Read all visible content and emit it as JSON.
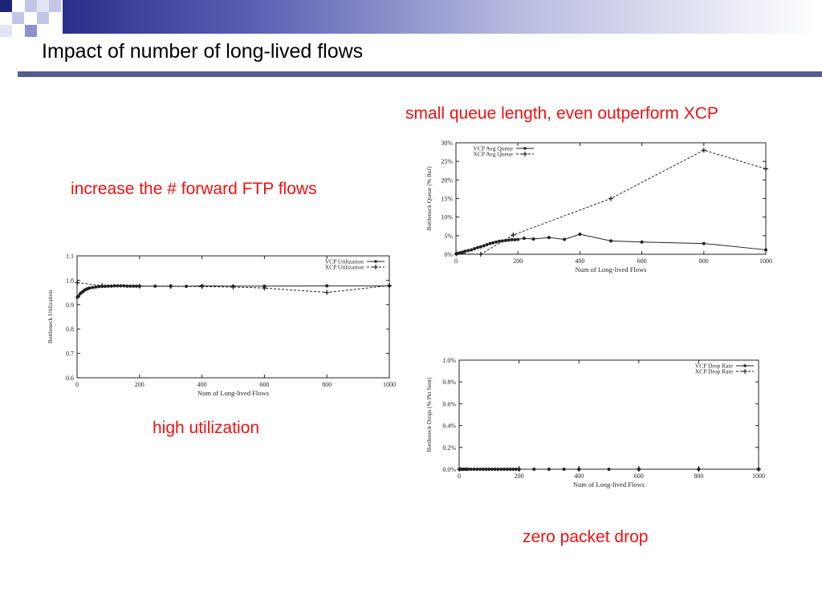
{
  "slide": {
    "title": "Impact of number of long-lived flows",
    "annotations": {
      "increase": "increase the # forward FTP flows",
      "queue": "small queue length, even outperform XCP",
      "utilization": "high utilization",
      "drop": "zero packet drop"
    },
    "colors": {
      "accent_dark": "#1f2378",
      "accent_mid": "#6a6fbd",
      "accent_light": "#c3c6e6",
      "annotation": "#ee1111"
    }
  },
  "chart_data": [
    {
      "id": "util",
      "type": "line",
      "xlabel": "Num of Long-lived Flows",
      "ylabel": "Bottleneck Utilization",
      "xlim": [
        0,
        1000
      ],
      "ylim": [
        0.6,
        1.1
      ],
      "xticks": [
        0,
        200,
        400,
        600,
        800,
        1000
      ],
      "yticks": [
        0.6,
        0.7,
        0.8,
        0.9,
        1.0,
        1.1
      ],
      "ytick_labels": [
        "0.6",
        "0.7",
        "0.8",
        "0.9",
        "1.0",
        "1.1"
      ],
      "legend_position": "top-right",
      "series": [
        {
          "name": "VCP Utilization",
          "style": "solid",
          "marker": "dot",
          "x": [
            1,
            5,
            10,
            15,
            20,
            25,
            30,
            35,
            40,
            50,
            60,
            70,
            80,
            90,
            100,
            110,
            120,
            130,
            140,
            150,
            160,
            170,
            180,
            190,
            200,
            250,
            300,
            350,
            400,
            500,
            600,
            800,
            1000
          ],
          "y": [
            0.93,
            0.935,
            0.945,
            0.95,
            0.955,
            0.96,
            0.963,
            0.966,
            0.968,
            0.97,
            0.972,
            0.974,
            0.975,
            0.975,
            0.976,
            0.976,
            0.977,
            0.977,
            0.977,
            0.977,
            0.976,
            0.976,
            0.976,
            0.976,
            0.976,
            0.976,
            0.976,
            0.975,
            0.977,
            0.976,
            0.976,
            0.977,
            0.977
          ]
        },
        {
          "name": "XCP Utilization",
          "style": "dashed",
          "marker": "plus",
          "x": [
            1,
            80,
            200,
            300,
            400,
            500,
            600,
            800,
            1000
          ],
          "y": [
            0.99,
            0.978,
            0.976,
            0.975,
            0.974,
            0.972,
            0.968,
            0.95,
            0.978
          ]
        }
      ]
    },
    {
      "id": "queue",
      "type": "line",
      "xlabel": "Num of Long-lived Flows",
      "ylabel": "Bottleneck Queue (% Buf)",
      "xlim": [
        0,
        1000
      ],
      "ylim": [
        0,
        30
      ],
      "xticks": [
        0,
        200,
        400,
        600,
        800,
        1000
      ],
      "yticks": [
        0,
        5,
        10,
        15,
        20,
        25,
        30
      ],
      "ytick_labels": [
        "0%",
        "5%",
        "10%",
        "15%",
        "20%",
        "25%",
        "30%"
      ],
      "legend_position": "top-left",
      "series": [
        {
          "name": "VCP Avg Queue",
          "style": "solid",
          "marker": "dot",
          "x": [
            1,
            5,
            10,
            15,
            20,
            25,
            30,
            40,
            50,
            60,
            70,
            80,
            90,
            100,
            110,
            120,
            130,
            140,
            150,
            160,
            170,
            180,
            190,
            200,
            220,
            250,
            300,
            350,
            400,
            500,
            600,
            800,
            1000
          ],
          "y": [
            0.1,
            0.2,
            0.3,
            0.4,
            0.5,
            0.6,
            0.8,
            1.0,
            1.2,
            1.5,
            1.8,
            2.0,
            2.3,
            2.6,
            2.9,
            3.1,
            3.3,
            3.5,
            3.6,
            3.7,
            3.8,
            3.9,
            3.9,
            4.0,
            4.3,
            4.1,
            4.5,
            4.0,
            5.4,
            3.6,
            3.3,
            2.9,
            1.2
          ]
        },
        {
          "name": "XCP Avg Queue",
          "style": "dashed",
          "marker": "plus",
          "x": [
            1,
            80,
            185,
            500,
            800,
            1000
          ],
          "y": [
            0.1,
            0.0,
            5.2,
            15.0,
            28.0,
            23.0
          ]
        }
      ]
    },
    {
      "id": "drop",
      "type": "line",
      "xlabel": "Num of Long-lived Flows",
      "ylabel": "Bottleneck Drops (% Pkt Sent)",
      "xlim": [
        0,
        1000
      ],
      "ylim": [
        0,
        1.0
      ],
      "xticks": [
        0,
        200,
        400,
        600,
        800,
        1000
      ],
      "yticks": [
        0,
        0.2,
        0.4,
        0.6,
        0.8,
        1.0
      ],
      "ytick_labels": [
        "0.0%",
        "0.2%",
        "0.4%",
        "0.6%",
        "0.8%",
        "1.0%"
      ],
      "legend_position": "top-right",
      "series": [
        {
          "name": "VCP Drop Rate",
          "style": "solid",
          "marker": "dot",
          "x": [
            1,
            5,
            10,
            15,
            20,
            25,
            30,
            40,
            50,
            60,
            70,
            80,
            90,
            100,
            110,
            120,
            130,
            140,
            150,
            160,
            170,
            180,
            190,
            200,
            250,
            300,
            350,
            400,
            500,
            600,
            800,
            1000
          ],
          "y": [
            0,
            0,
            0,
            0,
            0,
            0,
            0,
            0,
            0,
            0,
            0,
            0,
            0,
            0,
            0,
            0,
            0,
            0,
            0,
            0,
            0,
            0,
            0,
            0,
            0,
            0,
            0,
            0,
            0,
            0,
            0,
            0
          ]
        },
        {
          "name": "XCP Drop Rate",
          "style": "dashed",
          "marker": "plus",
          "x": [
            1,
            200,
            400,
            600,
            800,
            1000
          ],
          "y": [
            0,
            0,
            0,
            0,
            0,
            0
          ]
        }
      ]
    }
  ]
}
